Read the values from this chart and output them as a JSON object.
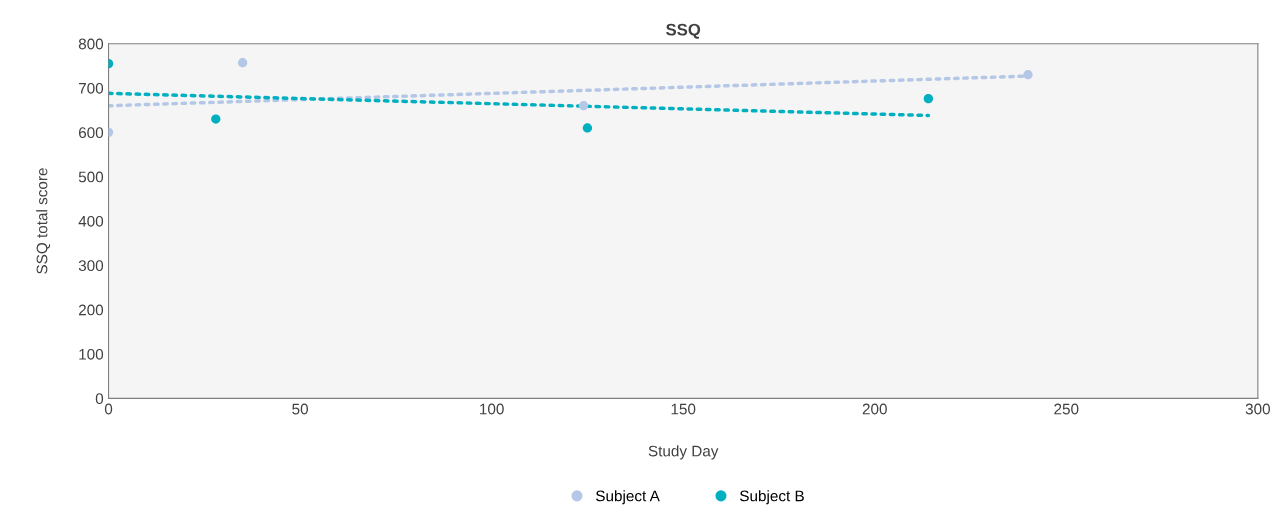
{
  "chart_data": {
    "type": "scatter",
    "title": "SSQ",
    "xlabel": "Study Day",
    "ylabel": "SSQ total score",
    "xlim": [
      0,
      300
    ],
    "xticks": [
      0,
      50,
      100,
      150,
      200,
      250,
      300
    ],
    "ylim": [
      0,
      800
    ],
    "yticks": [
      0,
      100,
      200,
      300,
      400,
      500,
      600,
      700,
      800
    ],
    "grid": false,
    "legend": "bottom",
    "series": [
      {
        "name": "Subject A",
        "color": "#b4c7e7",
        "marker": "circle",
        "x": [
          0,
          35,
          124,
          240
        ],
        "values": [
          600,
          757,
          660,
          730
        ]
      },
      {
        "name": "Subject B",
        "color": "#00b0c0",
        "marker": "circle",
        "x": [
          0,
          28,
          125,
          214
        ],
        "values": [
          755,
          630,
          610,
          676
        ]
      },
      {
        "type": "line",
        "line_style": "dotted",
        "color": "#b4c7e7",
        "x": [
          0,
          240
        ],
        "values": [
          660,
          727
        ]
      },
      {
        "type": "line",
        "line_style": "dotted",
        "color": "#00b0c0",
        "x": [
          0,
          214
        ],
        "values": [
          688,
          638
        ]
      }
    ]
  }
}
